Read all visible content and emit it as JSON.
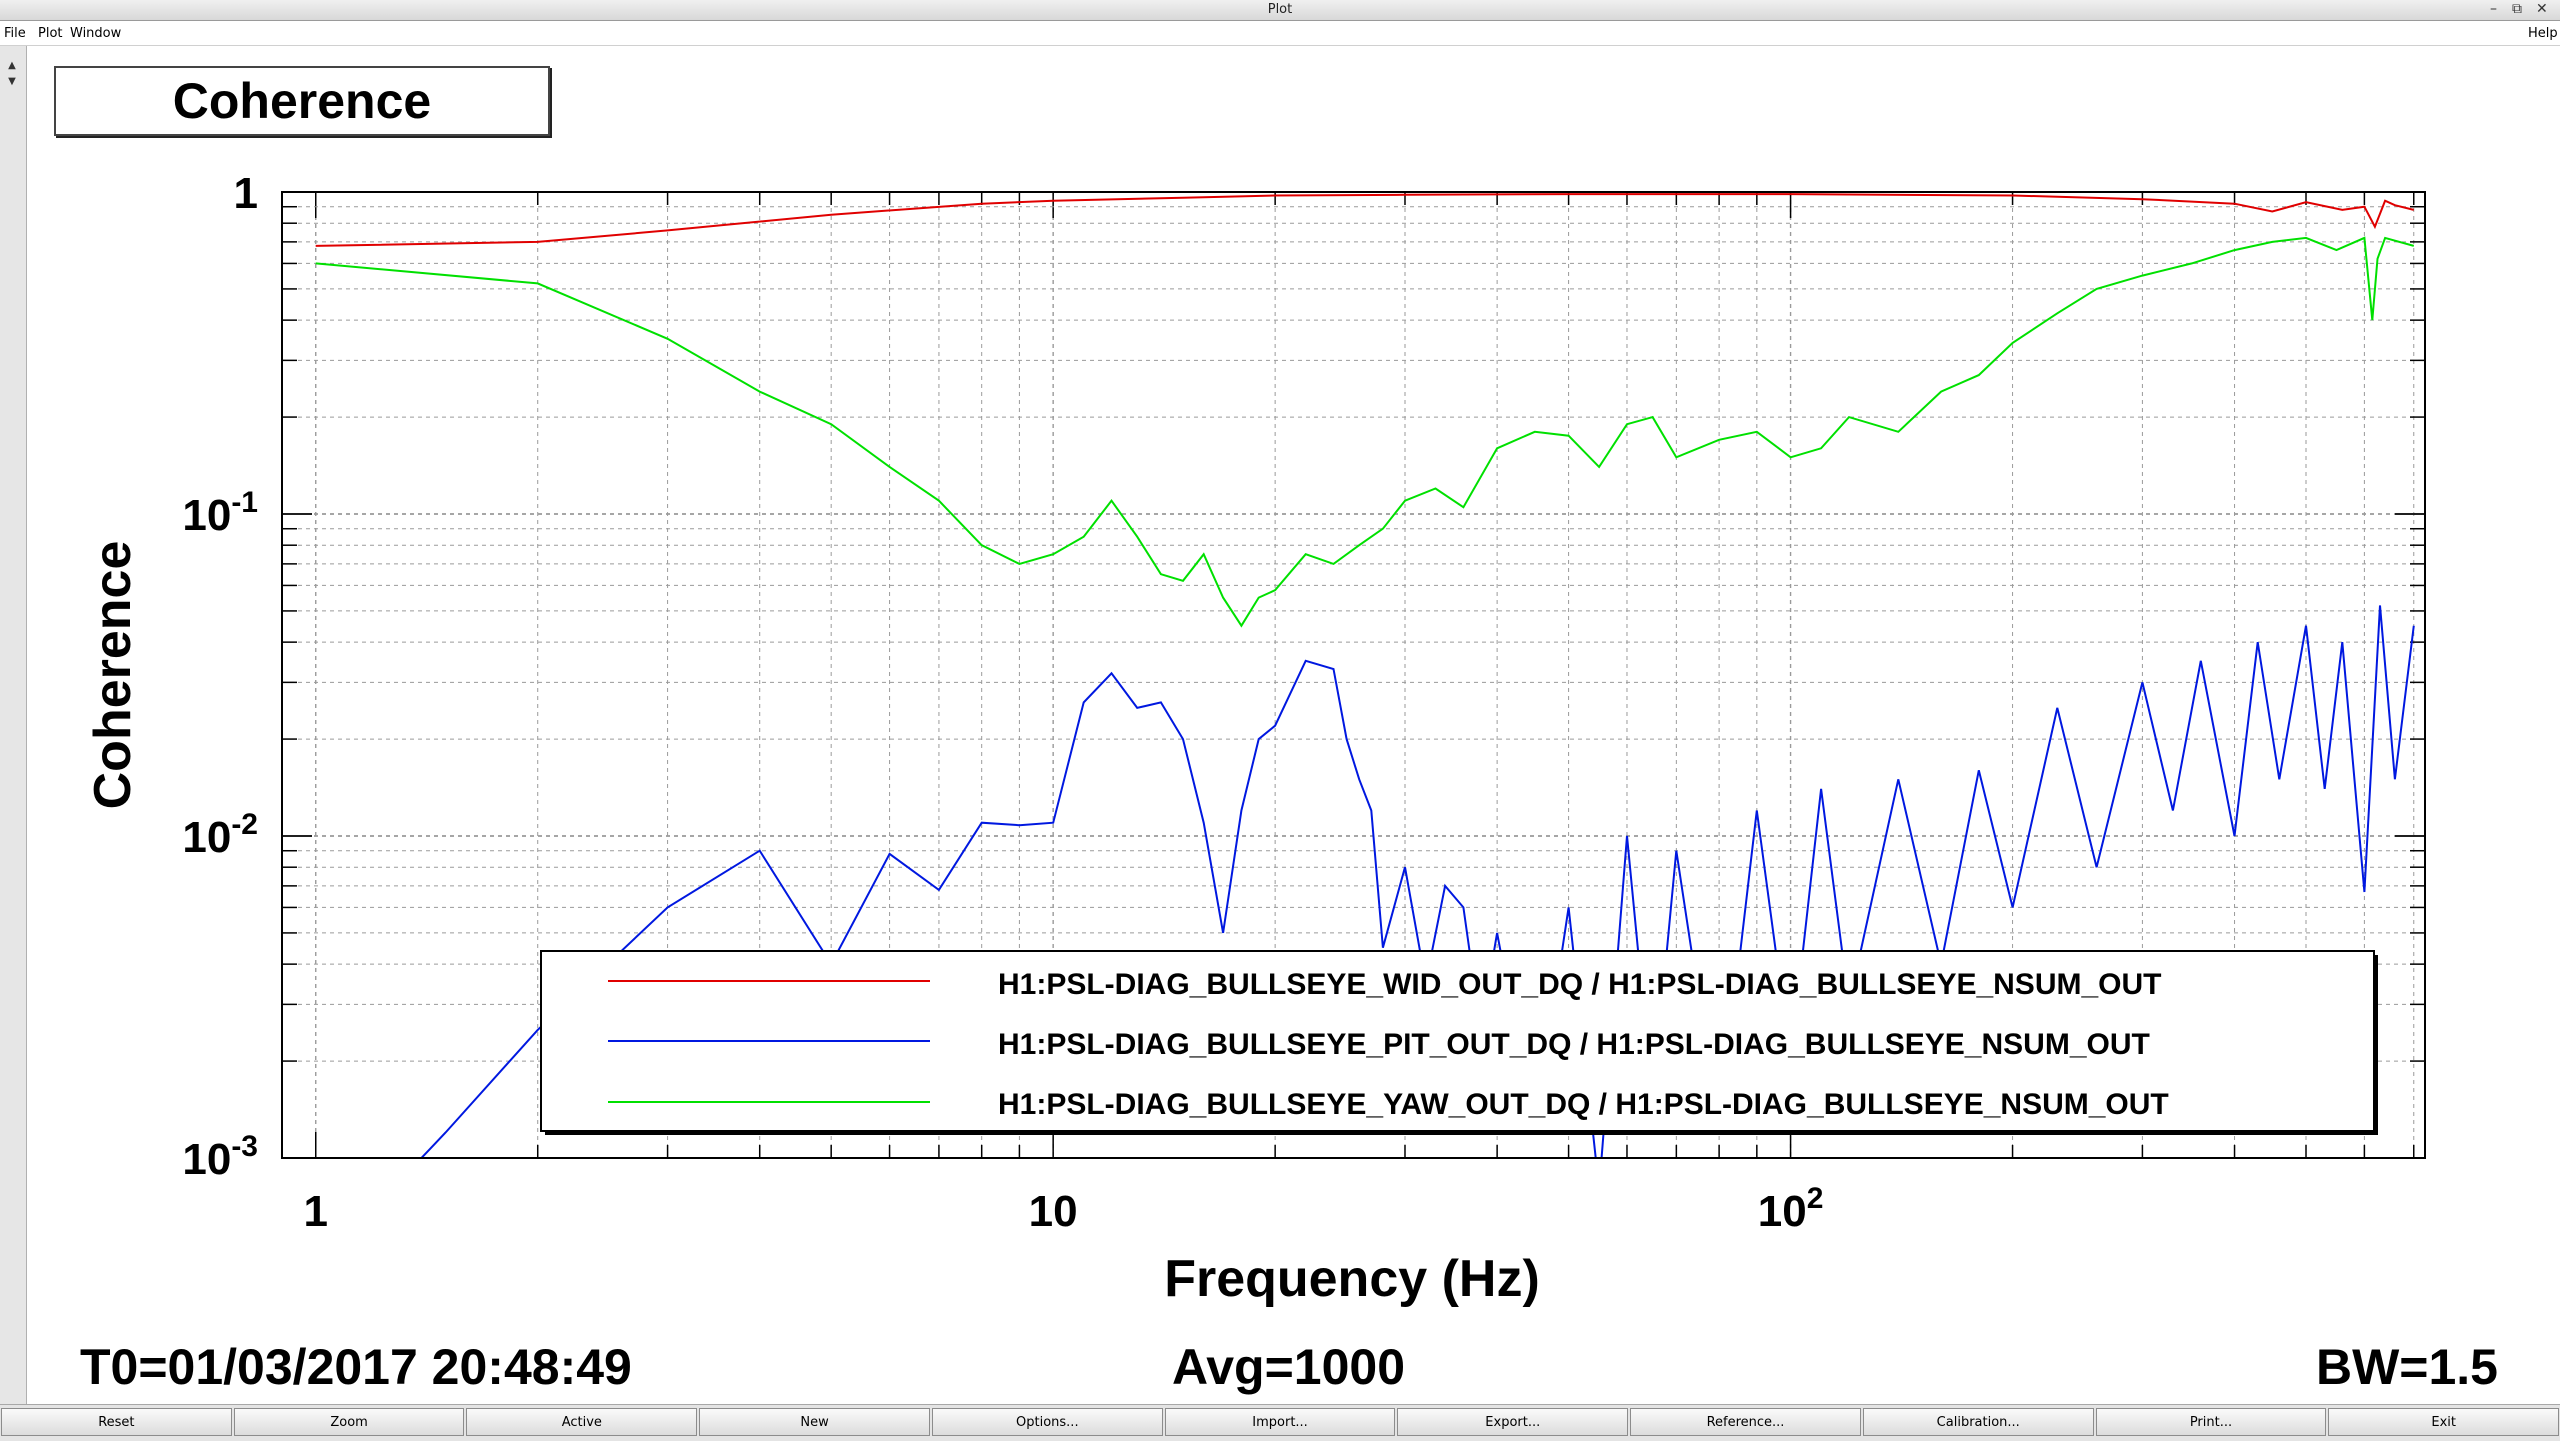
{
  "window": {
    "title": "Plot"
  },
  "menu": {
    "file": "File",
    "plot": "Plot",
    "window": "Window",
    "help": "Help"
  },
  "plot_title": "Coherence",
  "status": {
    "t0": "T0=01/03/2017 20:48:49",
    "avg": "Avg=1000",
    "bw": "BW=1.5"
  },
  "toolbar": {
    "reset": "Reset",
    "zoom": "Zoom",
    "active": "Active",
    "new": "New",
    "options": "Options...",
    "import": "Import...",
    "export": "Export...",
    "reference": "Reference...",
    "calibration": "Calibration...",
    "print": "Print...",
    "exit": "Exit"
  },
  "colors": {
    "red": "#e00000",
    "blue": "#0018e0",
    "green": "#00e000",
    "grid": "#9a9a9a"
  },
  "chart_data": {
    "type": "line",
    "title": "Coherence",
    "xlabel": "Frequency (Hz)",
    "ylabel": "Coherence",
    "xscale": "log",
    "yscale": "log",
    "xlim": [
      0.9,
      725
    ],
    "ylim": [
      0.001,
      1
    ],
    "x_ticks": [
      {
        "value": 1,
        "base": "1",
        "exp": ""
      },
      {
        "value": 10,
        "base": "10",
        "exp": ""
      },
      {
        "value": 100,
        "base": "10",
        "exp": "2"
      }
    ],
    "y_ticks": [
      {
        "value": 1,
        "base": "1",
        "exp": ""
      },
      {
        "value": 0.1,
        "base": "10",
        "exp": "-1"
      },
      {
        "value": 0.01,
        "base": "10",
        "exp": "-2"
      },
      {
        "value": 0.001,
        "base": "10",
        "exp": "-3"
      }
    ],
    "grid": true,
    "legend_position": "bottom-right",
    "series": [
      {
        "name": "H1:PSL-DIAG_BULLSEYE_WID_OUT_DQ / H1:PSL-DIAG_BULLSEYE_NSUM_OUT",
        "color": "#e00000",
        "x": [
          1,
          2,
          3,
          5,
          8,
          10,
          15,
          20,
          30,
          50,
          100,
          200,
          300,
          400,
          450,
          500,
          560,
          600,
          620,
          640,
          660,
          700
        ],
        "y": [
          0.68,
          0.7,
          0.76,
          0.85,
          0.92,
          0.94,
          0.96,
          0.975,
          0.98,
          0.985,
          0.985,
          0.975,
          0.95,
          0.92,
          0.87,
          0.93,
          0.88,
          0.9,
          0.78,
          0.94,
          0.91,
          0.88
        ]
      },
      {
        "name": "H1:PSL-DIAG_BULLSEYE_PIT_OUT_DQ / H1:PSL-DIAG_BULLSEYE_NSUM_OUT",
        "color": "#0018e0",
        "x": [
          1.2,
          1.5,
          2,
          3,
          4,
          5,
          6,
          7,
          8,
          9,
          10,
          11,
          12,
          13,
          14,
          15,
          16,
          17,
          18,
          19,
          20,
          22,
          24,
          25,
          26,
          27,
          28,
          30,
          32,
          34,
          36,
          38,
          40,
          45,
          50,
          55,
          60,
          65,
          70,
          80,
          90,
          100,
          110,
          120,
          140,
          160,
          180,
          200,
          230,
          260,
          300,
          330,
          360,
          400,
          430,
          460,
          500,
          530,
          560,
          600,
          630,
          660,
          700
        ],
        "y": [
          0.0007,
          0.0012,
          0.0025,
          0.006,
          0.009,
          0.004,
          0.0088,
          0.0068,
          0.011,
          0.0108,
          0.011,
          0.026,
          0.032,
          0.025,
          0.026,
          0.02,
          0.011,
          0.005,
          0.012,
          0.02,
          0.022,
          0.035,
          0.033,
          0.02,
          0.015,
          0.012,
          0.0045,
          0.008,
          0.0035,
          0.007,
          0.006,
          0.0025,
          0.005,
          0.0012,
          0.006,
          0.0008,
          0.01,
          0.0015,
          0.009,
          0.0012,
          0.012,
          0.002,
          0.014,
          0.003,
          0.015,
          0.004,
          0.016,
          0.006,
          0.025,
          0.008,
          0.03,
          0.012,
          0.035,
          0.01,
          0.04,
          0.015,
          0.045,
          0.014,
          0.04,
          0.0067,
          0.052,
          0.015,
          0.045
        ]
      },
      {
        "name": "H1:PSL-DIAG_BULLSEYE_YAW_OUT_DQ / H1:PSL-DIAG_BULLSEYE_NSUM_OUT",
        "color": "#00e000",
        "x": [
          1,
          2,
          3,
          4,
          5,
          6,
          7,
          8,
          9,
          10,
          11,
          12,
          13,
          14,
          15,
          16,
          17,
          18,
          19,
          20,
          22,
          24,
          26,
          28,
          30,
          33,
          36,
          40,
          45,
          50,
          55,
          60,
          65,
          70,
          80,
          90,
          100,
          110,
          120,
          140,
          160,
          180,
          200,
          230,
          260,
          300,
          350,
          400,
          450,
          500,
          550,
          600,
          615,
          625,
          640,
          700
        ],
        "y": [
          0.6,
          0.52,
          0.35,
          0.24,
          0.19,
          0.14,
          0.11,
          0.08,
          0.07,
          0.075,
          0.085,
          0.11,
          0.085,
          0.065,
          0.062,
          0.075,
          0.055,
          0.045,
          0.055,
          0.058,
          0.075,
          0.07,
          0.08,
          0.09,
          0.11,
          0.12,
          0.105,
          0.16,
          0.18,
          0.175,
          0.14,
          0.19,
          0.2,
          0.15,
          0.17,
          0.18,
          0.15,
          0.16,
          0.2,
          0.18,
          0.24,
          0.27,
          0.34,
          0.42,
          0.5,
          0.55,
          0.6,
          0.66,
          0.7,
          0.72,
          0.66,
          0.72,
          0.4,
          0.62,
          0.72,
          0.68
        ]
      }
    ]
  }
}
